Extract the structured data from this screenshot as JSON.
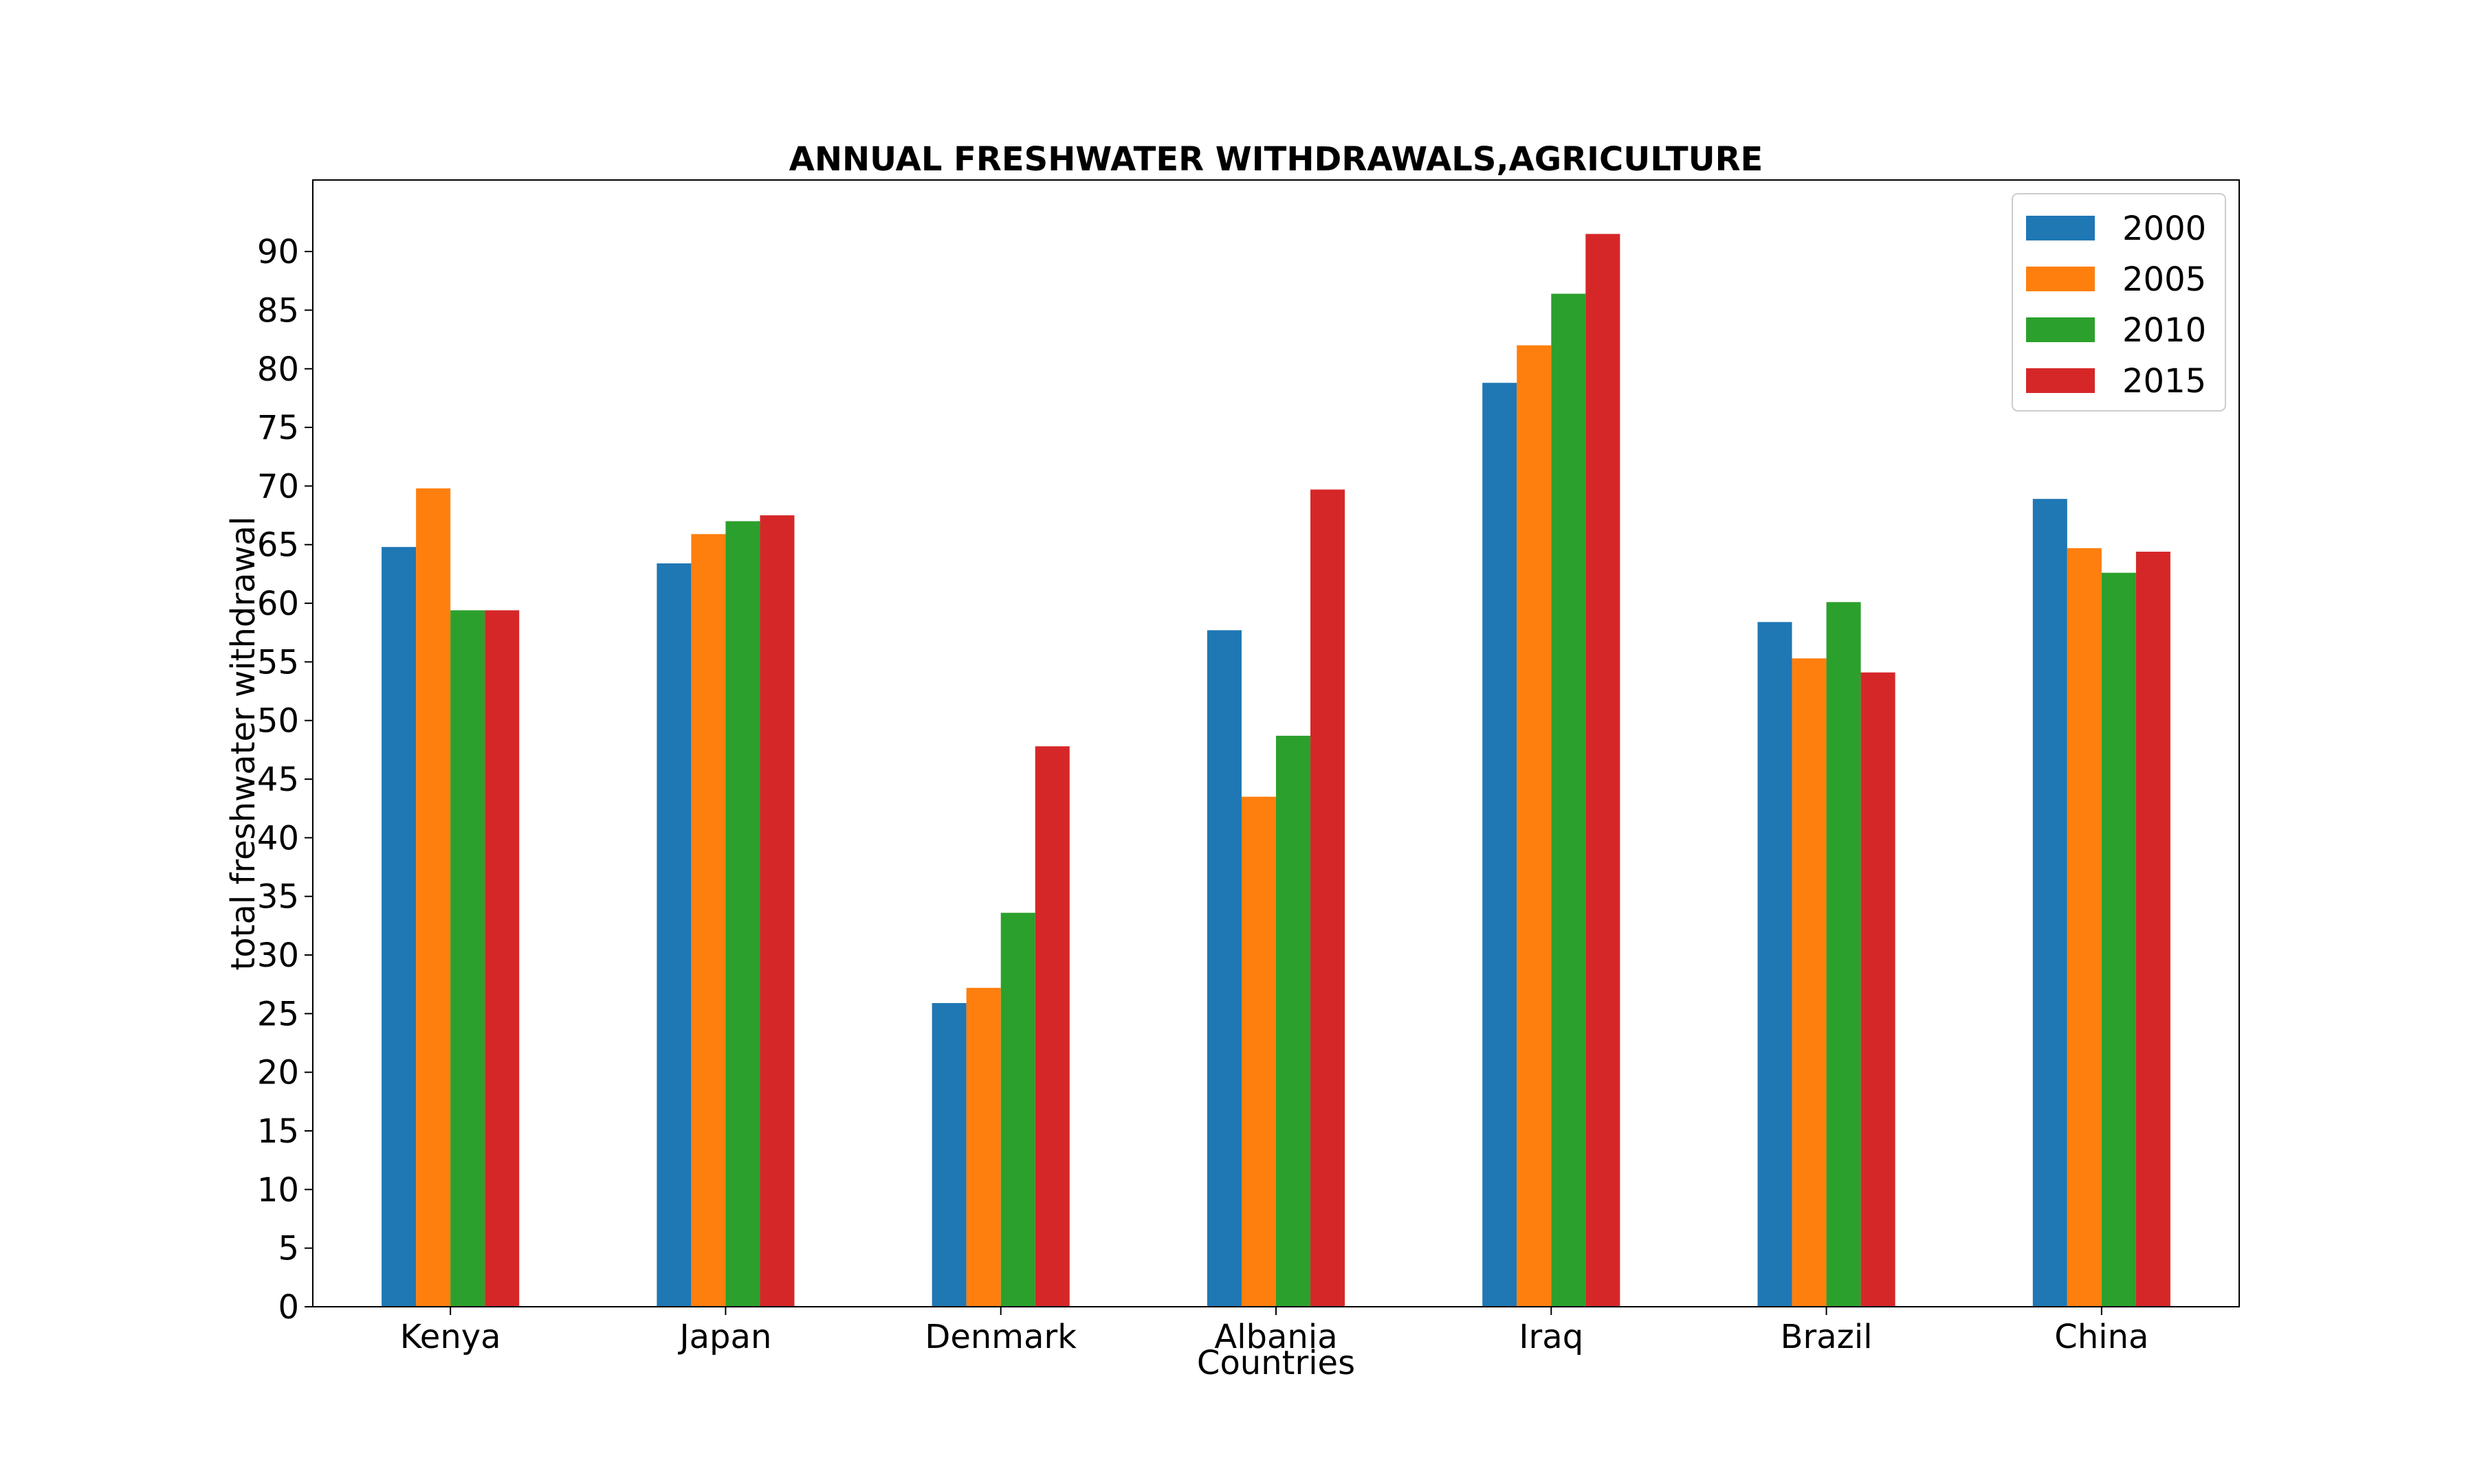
{
  "chart_data": {
    "type": "bar",
    "title": "ANNUAL FRESHWATER WITHDRAWALS,AGRICULTURE",
    "xlabel": "Countries",
    "ylabel": "total freshwater withdrawal",
    "categories": [
      "Kenya",
      "Japan",
      "Denmark",
      "Albania",
      "Iraq",
      "Brazil",
      "China"
    ],
    "series": [
      {
        "name": "2000",
        "color": "#1f77b4",
        "values": [
          64.8,
          63.4,
          25.9,
          57.7,
          78.8,
          58.4,
          68.9
        ]
      },
      {
        "name": "2005",
        "color": "#ff7f0e",
        "values": [
          69.8,
          65.9,
          27.2,
          43.5,
          82.0,
          55.3,
          64.7
        ]
      },
      {
        "name": "2010",
        "color": "#2ca02c",
        "values": [
          59.4,
          67.0,
          33.6,
          48.7,
          86.4,
          60.1,
          62.6
        ]
      },
      {
        "name": "2015",
        "color": "#d62728",
        "values": [
          59.4,
          67.5,
          47.8,
          69.7,
          91.5,
          54.1,
          64.4
        ]
      }
    ],
    "ylim": [
      0,
      96.1
    ],
    "yticks": [
      0,
      5,
      10,
      15,
      20,
      25,
      30,
      35,
      40,
      45,
      50,
      55,
      60,
      65,
      70,
      75,
      80,
      85,
      90
    ],
    "legend": "top-right",
    "grid": false
  }
}
